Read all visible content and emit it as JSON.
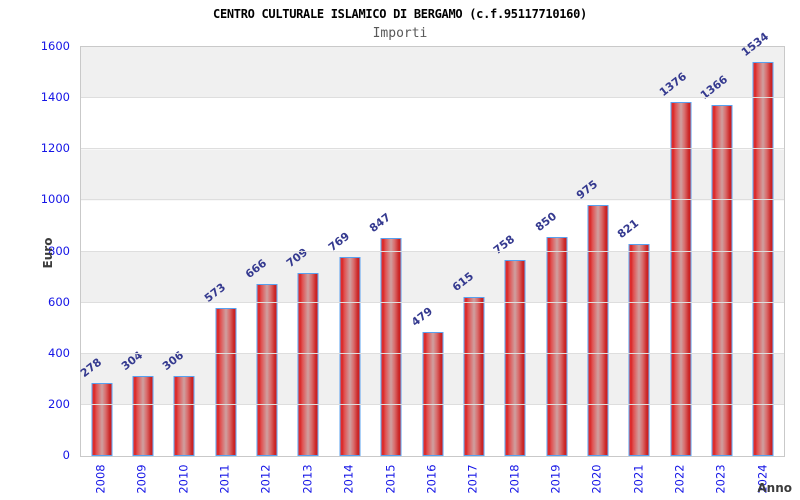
{
  "header": {
    "title": "CENTRO CULTURALE ISLAMICO DI BERGAMO (c.f.95117710160)",
    "subtitle": "Importi"
  },
  "axes": {
    "y_axis_label": "Euro",
    "x_axis_label": "Anno"
  },
  "chart_data": {
    "type": "bar",
    "title": "CENTRO CULTURALE ISLAMICO DI BERGAMO (c.f.95117710160)",
    "subtitle": "Importi",
    "xlabel": "Anno",
    "ylabel": "Euro",
    "categories": [
      "2008",
      "2009",
      "2010",
      "2011",
      "2012",
      "2013",
      "2014",
      "2015",
      "2016",
      "2017",
      "2018",
      "2019",
      "2020",
      "2021",
      "2022",
      "2023",
      "2024"
    ],
    "values": [
      278,
      304,
      306,
      573,
      666,
      709,
      769,
      847,
      479,
      615,
      758,
      850,
      975,
      821,
      1376,
      1366,
      1534
    ],
    "ylim": [
      0,
      1600
    ],
    "ytick_step": 200,
    "yticks": [
      0,
      200,
      400,
      600,
      800,
      1000,
      1200,
      1400,
      1600
    ],
    "grid": "horizontal alternating bands, gridline every 200",
    "legend": "none",
    "value_labels": "above bars, rotated",
    "colors": {
      "bar_edge_red": "#d92525",
      "bar_center": "#cfa0a0",
      "bar_border_blue": "#57a0ef",
      "tick_label_blue": "#1515e6",
      "value_label_navy": "#34398f",
      "band_gray": "#f0f0f0",
      "gridline": "#dedede",
      "plot_border": "#c9c9c9",
      "title_color": "#000000",
      "subtitle_color": "#595959",
      "axis_label_color": "#3c3c3c",
      "background": "#ffffff"
    }
  }
}
